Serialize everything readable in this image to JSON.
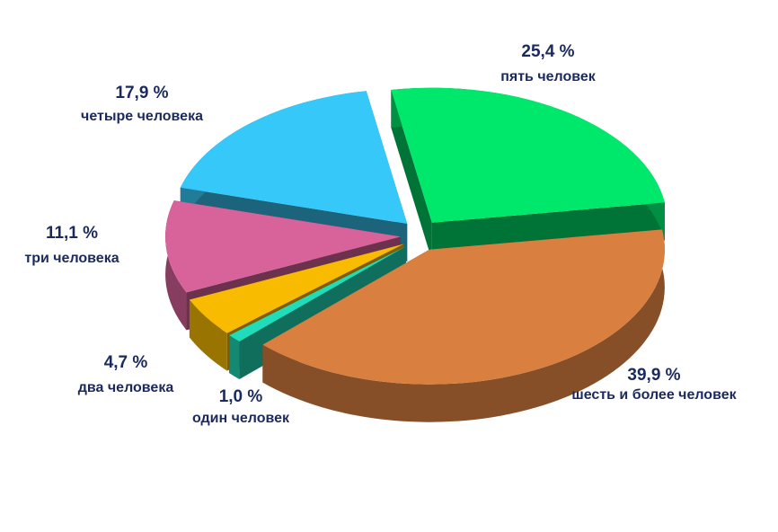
{
  "chart_data": {
    "type": "pie",
    "categories": [
      "пять человек",
      "шесть и более человек",
      "один человек",
      "два человека",
      "три человека",
      "четыре человека"
    ],
    "values": [
      25.4,
      39.9,
      1.0,
      4.7,
      11.1,
      17.9
    ],
    "value_labels": [
      "25,4 %",
      "39,9 %",
      "1,0 %",
      "4,7 %",
      "11,1 %",
      "17,9 %"
    ],
    "colors": [
      "#00e86c",
      "#d98040",
      "#20dcb8",
      "#f8bb00",
      "#d8629a",
      "#36c8f8"
    ]
  }
}
